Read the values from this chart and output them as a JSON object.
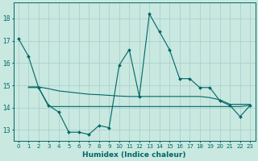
{
  "xlabel": "Humidex (Indice chaleur)",
  "bg_color": "#c8e8e0",
  "grid_color": "#a8cccc",
  "line_color": "#006666",
  "xlim": [
    -0.5,
    23.5
  ],
  "ylim": [
    12.5,
    18.7
  ],
  "yticks": [
    13,
    14,
    15,
    16,
    17,
    18
  ],
  "xticks": [
    0,
    1,
    2,
    3,
    4,
    5,
    6,
    7,
    8,
    9,
    10,
    11,
    12,
    13,
    14,
    15,
    16,
    17,
    18,
    19,
    20,
    21,
    22,
    23
  ],
  "line1_x": [
    0,
    1,
    2,
    3,
    4,
    5,
    6,
    7,
    8,
    9,
    10,
    11,
    12,
    13,
    14,
    15,
    16,
    17,
    18,
    19,
    20,
    21,
    22,
    23
  ],
  "line1_y": [
    17.1,
    16.3,
    14.9,
    14.1,
    13.8,
    12.9,
    12.9,
    12.8,
    13.2,
    13.1,
    15.9,
    16.6,
    14.5,
    18.2,
    17.4,
    16.6,
    15.3,
    15.3,
    14.9,
    14.9,
    14.3,
    14.1,
    13.6,
    14.1
  ],
  "line2_x": [
    1,
    2,
    3,
    4,
    5,
    6,
    7,
    8,
    9,
    10,
    11,
    12,
    13,
    14,
    15,
    16,
    17,
    18,
    19,
    20,
    21,
    22,
    23
  ],
  "line2_y": [
    14.9,
    14.9,
    14.05,
    14.05,
    14.05,
    14.05,
    14.05,
    14.05,
    14.05,
    14.05,
    14.05,
    14.05,
    14.05,
    14.05,
    14.05,
    14.05,
    14.05,
    14.05,
    14.05,
    14.05,
    14.05,
    14.05,
    14.1
  ],
  "line3_x": [
    1,
    2,
    3,
    4,
    5,
    6,
    7,
    8,
    9,
    10,
    11,
    12,
    13,
    14,
    15,
    16,
    17,
    18,
    19,
    20,
    21,
    23
  ],
  "line3_y": [
    14.93,
    14.93,
    14.85,
    14.75,
    14.7,
    14.65,
    14.6,
    14.58,
    14.55,
    14.52,
    14.5,
    14.5,
    14.5,
    14.5,
    14.5,
    14.5,
    14.5,
    14.5,
    14.45,
    14.35,
    14.15,
    14.15
  ]
}
